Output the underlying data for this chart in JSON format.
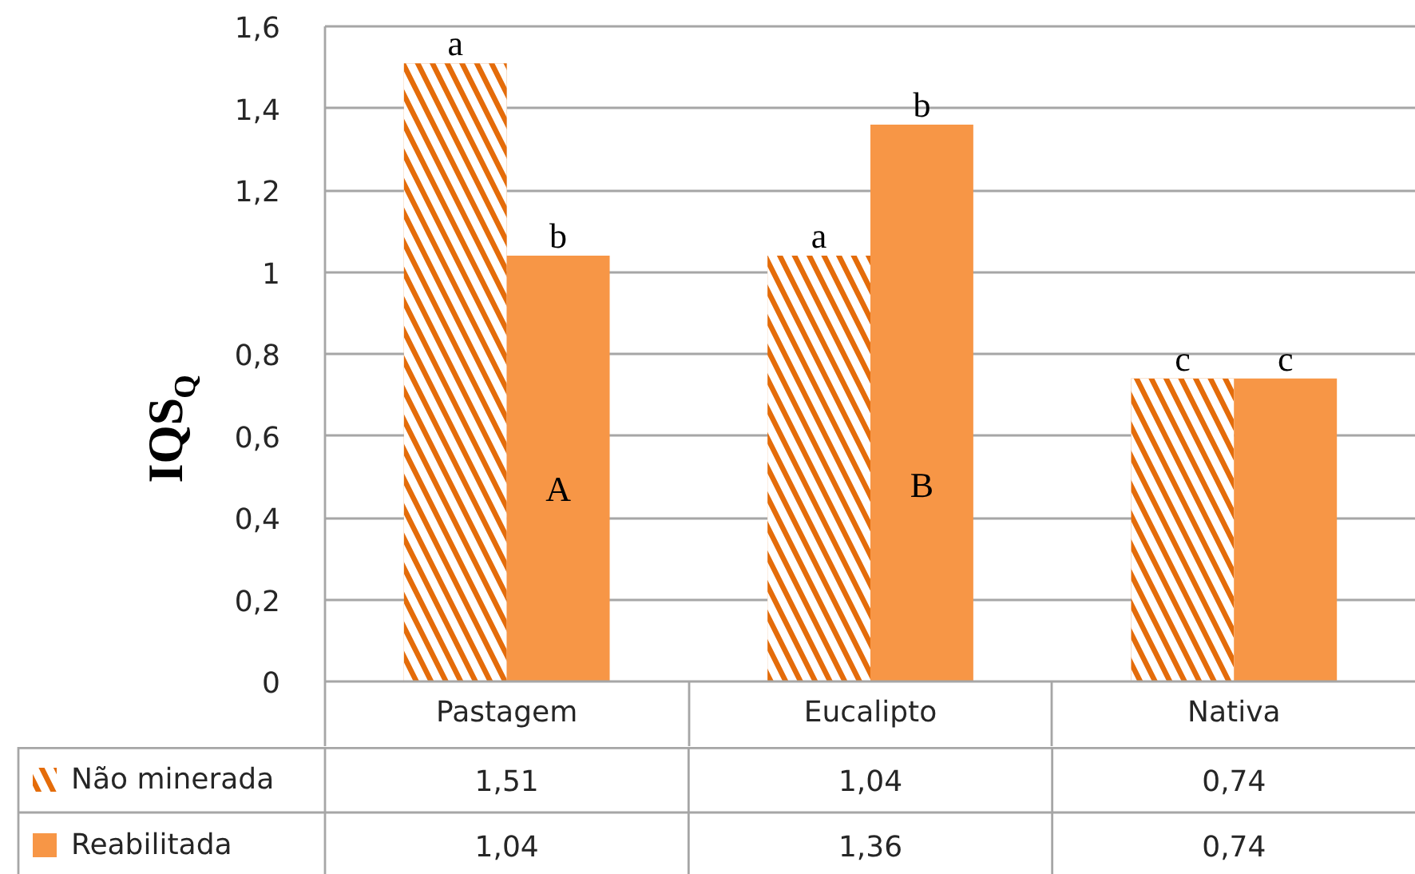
{
  "chart_data": {
    "type": "bar",
    "categories": [
      "Pastagem",
      "Eucalipto",
      "Nativa"
    ],
    "series": [
      {
        "name": "Não minerada",
        "color": "#e46c0a",
        "values": [
          1.51,
          1.04,
          0.74
        ],
        "value_labels": [
          "1,51",
          "1,04",
          "0,74"
        ]
      },
      {
        "name": "Reabilitada",
        "color": "#f79646",
        "values": [
          1.04,
          1.36,
          0.74
        ],
        "value_labels": [
          "1,04",
          "1,36",
          "0,74"
        ]
      }
    ],
    "ylim": [
      0,
      1.6
    ],
    "yticks": [
      0,
      {
        "value": 0.2,
        "label": "0,2"
      },
      {
        "value": 0.4,
        "label": "0,4"
      },
      {
        "value": 0.6,
        "label": "0,6"
      },
      {
        "value": 0.8,
        "label": "0,8"
      },
      1,
      {
        "value": 1.2,
        "label": "1,2"
      },
      {
        "value": 1.4,
        "label": "1,4"
      },
      {
        "value": 1.6,
        "label": "1,6"
      }
    ],
    "ylabel": "IQS$_{Q}$",
    "grid": "y",
    "legend": "bottom",
    "annotations": [
      {
        "text": "a",
        "x": "Pastagem",
        "y": 1.51
      },
      {
        "text": "b",
        "x": "Pastagem",
        "y": 1.04
      },
      {
        "text": "A",
        "x": "Pastagem",
        "y": 0.47
      },
      {
        "text": "a",
        "x": "Eucalipto",
        "y": 1.04
      },
      {
        "text": "b",
        "x": "Eucalipto",
        "y": 1.36
      },
      {
        "text": "B",
        "x": "Eucalipto",
        "y": 0.48
      },
      {
        "text": "c",
        "x": "Nativa",
        "y": 0.74
      },
      {
        "text": "c",
        "x": "Nativa",
        "y": 0.74
      }
    ]
  }
}
